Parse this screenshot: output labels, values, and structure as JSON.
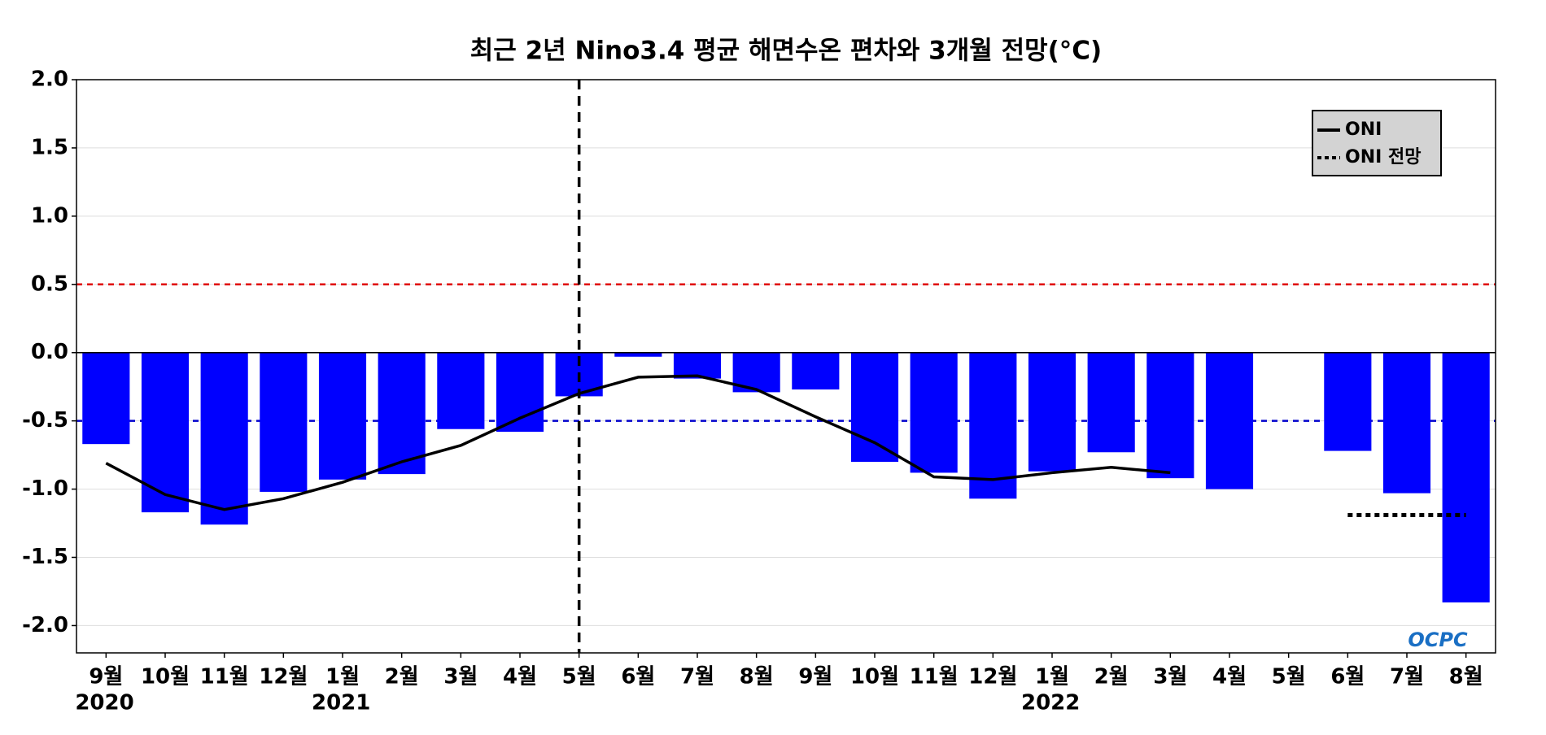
{
  "chart_data": {
    "type": "bar",
    "title": "최근 2년 Nino3.4 평균 해면수온 편차와 3개월 전망(°C)",
    "categories": [
      "9월",
      "10월",
      "11월",
      "12월",
      "1월",
      "2월",
      "3월",
      "4월",
      "5월",
      "6월",
      "7월",
      "8월",
      "9월",
      "10월",
      "11월",
      "12월",
      "1월",
      "2월",
      "3월",
      "4월",
      "5월",
      "6월",
      "7월",
      "8월"
    ],
    "category_years": [
      "2020",
      null,
      null,
      null,
      "2021",
      null,
      null,
      null,
      null,
      null,
      null,
      null,
      null,
      null,
      null,
      null,
      "2022",
      null,
      null,
      null,
      null,
      null,
      null,
      null
    ],
    "bars": {
      "color": "#0000ff",
      "values": [
        -0.67,
        -1.17,
        -1.26,
        -1.02,
        -0.93,
        -0.89,
        -0.56,
        -0.58,
        -0.32,
        -0.03,
        -0.19,
        -0.29,
        -0.27,
        -0.8,
        -0.88,
        -1.07,
        -0.87,
        -0.73,
        -0.92,
        -1.0,
        null,
        -0.72,
        -1.03,
        -1.83
      ]
    },
    "series": [
      {
        "name": "ONI",
        "color": "#000000",
        "style": "solid",
        "values": [
          -0.81,
          -1.04,
          -1.15,
          -1.07,
          -0.95,
          -0.8,
          -0.68,
          -0.48,
          -0.3,
          -0.18,
          -0.17,
          -0.27,
          -0.47,
          -0.66,
          -0.91,
          -0.93,
          -0.88,
          -0.84,
          -0.88,
          null,
          null,
          null,
          null,
          null
        ]
      },
      {
        "name": "ONI 전망",
        "color": "#000000",
        "style": "dotted",
        "values": [
          null,
          null,
          null,
          null,
          null,
          null,
          null,
          null,
          null,
          null,
          null,
          null,
          null,
          null,
          null,
          null,
          null,
          null,
          null,
          null,
          null,
          -1.19,
          -1.19,
          -1.19
        ]
      }
    ],
    "reference_lines": [
      {
        "value": 0.5,
        "color": "#e00000"
      },
      {
        "value": -0.5,
        "color": "#0000cc"
      }
    ],
    "vline_at": "5월",
    "ylim": [
      -2.2,
      2.0
    ],
    "yticks": [
      {
        "value": -2,
        "label": "-2.0"
      },
      {
        "value": -1.5,
        "label": "-1.5"
      },
      {
        "value": -1,
        "label": "-1.0"
      },
      {
        "value": -0.5,
        "label": "-0.5"
      },
      {
        "value": 0,
        "label": "0.0"
      },
      {
        "value": 0.5,
        "label": "0.5"
      },
      {
        "value": 1,
        "label": "1.0"
      },
      {
        "value": 1.5,
        "label": "1.5"
      },
      {
        "value": 2,
        "label": "2.0"
      }
    ],
    "grid": true,
    "legend": "upper right",
    "logo": "OCPC"
  }
}
